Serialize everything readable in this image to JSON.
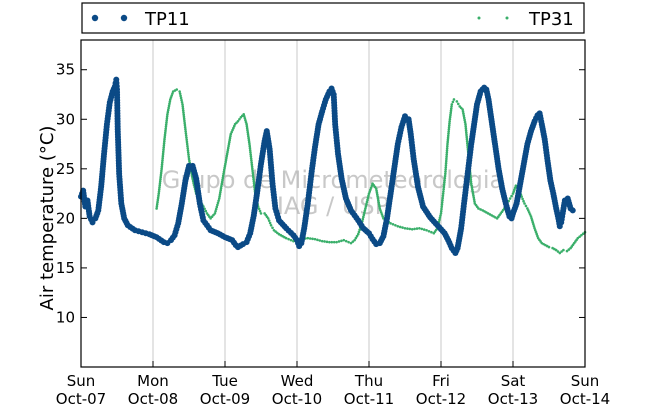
{
  "chart_data": {
    "type": "scatter",
    "ylabel": "Air temperature (°C)",
    "xlabel": "",
    "ylim": [
      5,
      38
    ],
    "y_ticks": [
      10,
      15,
      20,
      25,
      30,
      35
    ],
    "x_range_days": [
      0,
      7
    ],
    "grid": "vertical lines at day boundaries",
    "legend_position": "top (above plot), spanning full width",
    "x_ticks": [
      {
        "day": 0,
        "line1": "Sun",
        "line2": "Oct-07"
      },
      {
        "day": 1,
        "line1": "Mon",
        "line2": "Oct-08"
      },
      {
        "day": 2,
        "line1": "Tue",
        "line2": "Oct-09"
      },
      {
        "day": 3,
        "line1": "Wed",
        "line2": "Oct-10"
      },
      {
        "day": 4,
        "line1": "Thu",
        "line2": "Oct-11"
      },
      {
        "day": 5,
        "line1": "Fri",
        "line2": "Oct-12"
      },
      {
        "day": 6,
        "line1": "Sat",
        "line2": "Oct-13"
      },
      {
        "day": 7,
        "line1": "Sun",
        "line2": "Oct-14"
      }
    ],
    "watermark": [
      "Grupo de Micrometeorologia",
      "IAG / USP"
    ],
    "series": [
      {
        "name": "TP11",
        "color": "#0b4a86",
        "marker": "large-dot",
        "points": [
          [
            0.0,
            22.2
          ],
          [
            0.03,
            22.8
          ],
          [
            0.06,
            21.2
          ],
          [
            0.09,
            21.8
          ],
          [
            0.12,
            20.2
          ],
          [
            0.16,
            19.6
          ],
          [
            0.2,
            20.0
          ],
          [
            0.24,
            20.8
          ],
          [
            0.28,
            23.2
          ],
          [
            0.32,
            26.5
          ],
          [
            0.36,
            29.5
          ],
          [
            0.4,
            31.7
          ],
          [
            0.44,
            32.8
          ],
          [
            0.47,
            33.3
          ],
          [
            0.49,
            34.0
          ],
          [
            0.5,
            33.0
          ],
          [
            0.51,
            29.0
          ],
          [
            0.53,
            24.5
          ],
          [
            0.56,
            21.5
          ],
          [
            0.6,
            20.0
          ],
          [
            0.65,
            19.3
          ],
          [
            0.75,
            18.8
          ],
          [
            0.85,
            18.6
          ],
          [
            0.95,
            18.4
          ],
          [
            1.05,
            18.1
          ],
          [
            1.15,
            17.6
          ],
          [
            1.2,
            17.5
          ],
          [
            1.25,
            17.8
          ],
          [
            1.3,
            18.3
          ],
          [
            1.35,
            19.5
          ],
          [
            1.4,
            21.5
          ],
          [
            1.45,
            23.8
          ],
          [
            1.5,
            25.3
          ],
          [
            1.55,
            25.3
          ],
          [
            1.6,
            24.0
          ],
          [
            1.65,
            21.5
          ],
          [
            1.7,
            19.8
          ],
          [
            1.8,
            18.8
          ],
          [
            1.9,
            18.5
          ],
          [
            2.0,
            18.1
          ],
          [
            2.1,
            17.8
          ],
          [
            2.15,
            17.3
          ],
          [
            2.18,
            17.1
          ],
          [
            2.25,
            17.4
          ],
          [
            2.3,
            17.6
          ],
          [
            2.35,
            18.5
          ],
          [
            2.4,
            20.3
          ],
          [
            2.45,
            22.8
          ],
          [
            2.5,
            25.5
          ],
          [
            2.55,
            27.8
          ],
          [
            2.58,
            28.8
          ],
          [
            2.62,
            27.0
          ],
          [
            2.66,
            23.5
          ],
          [
            2.7,
            21.0
          ],
          [
            2.75,
            19.8
          ],
          [
            2.85,
            19.0
          ],
          [
            2.95,
            18.3
          ],
          [
            3.0,
            17.8
          ],
          [
            3.03,
            17.2
          ],
          [
            3.06,
            17.5
          ],
          [
            3.1,
            19.0
          ],
          [
            3.15,
            21.5
          ],
          [
            3.2,
            24.5
          ],
          [
            3.25,
            27.2
          ],
          [
            3.3,
            29.5
          ],
          [
            3.35,
            30.8
          ],
          [
            3.4,
            32.0
          ],
          [
            3.45,
            32.8
          ],
          [
            3.48,
            33.1
          ],
          [
            3.51,
            32.5
          ],
          [
            3.53,
            29.5
          ],
          [
            3.57,
            26.5
          ],
          [
            3.62,
            24.0
          ],
          [
            3.68,
            22.0
          ],
          [
            3.75,
            20.8
          ],
          [
            3.85,
            19.8
          ],
          [
            3.92,
            19.0
          ],
          [
            4.0,
            18.5
          ],
          [
            4.05,
            17.9
          ],
          [
            4.1,
            17.4
          ],
          [
            4.15,
            17.5
          ],
          [
            4.2,
            18.2
          ],
          [
            4.25,
            20.0
          ],
          [
            4.3,
            22.5
          ],
          [
            4.35,
            25.0
          ],
          [
            4.4,
            27.5
          ],
          [
            4.45,
            29.2
          ],
          [
            4.5,
            30.3
          ],
          [
            4.55,
            30.0
          ],
          [
            4.58,
            28.5
          ],
          [
            4.62,
            26.0
          ],
          [
            4.68,
            23.2
          ],
          [
            4.75,
            21.2
          ],
          [
            4.85,
            20.1
          ],
          [
            4.95,
            19.3
          ],
          [
            5.05,
            18.5
          ],
          [
            5.1,
            17.8
          ],
          [
            5.15,
            17.0
          ],
          [
            5.2,
            16.5
          ],
          [
            5.23,
            17.0
          ],
          [
            5.28,
            19.0
          ],
          [
            5.32,
            21.5
          ],
          [
            5.37,
            24.5
          ],
          [
            5.42,
            27.5
          ],
          [
            5.46,
            29.5
          ],
          [
            5.5,
            31.5
          ],
          [
            5.55,
            32.8
          ],
          [
            5.6,
            33.2
          ],
          [
            5.63,
            33.0
          ],
          [
            5.66,
            32.0
          ],
          [
            5.7,
            30.0
          ],
          [
            5.75,
            27.5
          ],
          [
            5.8,
            25.0
          ],
          [
            5.85,
            23.0
          ],
          [
            5.9,
            21.5
          ],
          [
            5.95,
            20.2
          ],
          [
            5.98,
            20.0
          ],
          [
            6.0,
            20.5
          ],
          [
            6.05,
            21.5
          ],
          [
            6.1,
            23.5
          ],
          [
            6.15,
            25.5
          ],
          [
            6.2,
            27.5
          ],
          [
            6.25,
            28.8
          ],
          [
            6.3,
            29.8
          ],
          [
            6.34,
            30.4
          ],
          [
            6.37,
            30.6
          ],
          [
            6.4,
            29.5
          ],
          [
            6.44,
            28.0
          ],
          [
            6.48,
            25.8
          ],
          [
            6.52,
            23.8
          ],
          [
            6.56,
            22.5
          ],
          [
            6.6,
            21.0
          ],
          [
            6.63,
            20.0
          ],
          [
            6.65,
            19.2
          ],
          [
            6.67,
            19.6
          ],
          [
            6.69,
            20.5
          ],
          [
            6.72,
            21.8
          ],
          [
            6.76,
            22.0
          ],
          [
            6.8,
            21.0
          ],
          [
            6.83,
            20.8
          ]
        ]
      },
      {
        "name": "TP31",
        "color": "#3aaf6a",
        "marker": "small-dot",
        "points": [
          [
            1.05,
            21.0
          ],
          [
            1.08,
            22.5
          ],
          [
            1.12,
            25.0
          ],
          [
            1.16,
            28.0
          ],
          [
            1.2,
            30.5
          ],
          [
            1.24,
            32.0
          ],
          [
            1.28,
            32.8
          ],
          [
            1.33,
            33.0
          ],
          [
            1.37,
            32.8
          ],
          [
            1.41,
            31.5
          ],
          [
            1.45,
            29.0
          ],
          [
            1.5,
            26.0
          ],
          [
            1.55,
            24.0
          ],
          [
            1.6,
            22.5
          ],
          [
            1.65,
            21.8
          ],
          [
            1.7,
            21.2
          ],
          [
            1.75,
            20.5
          ],
          [
            1.8,
            20.0
          ],
          [
            1.86,
            20.5
          ],
          [
            1.92,
            22.0
          ],
          [
            1.98,
            24.5
          ],
          [
            2.03,
            26.5
          ],
          [
            2.08,
            28.5
          ],
          [
            2.14,
            29.5
          ],
          [
            2.18,
            29.8
          ],
          [
            2.22,
            30.2
          ],
          [
            2.26,
            30.5
          ],
          [
            2.3,
            29.5
          ],
          [
            2.34,
            27.5
          ],
          [
            2.38,
            25.0
          ],
          [
            2.42,
            22.5
          ],
          [
            2.46,
            21.2
          ],
          [
            2.5,
            20.5
          ],
          [
            2.55,
            20.5
          ],
          [
            2.6,
            20.0
          ],
          [
            2.64,
            19.3
          ],
          [
            2.68,
            18.8
          ],
          [
            2.75,
            18.4
          ],
          [
            2.85,
            18.0
          ],
          [
            2.95,
            17.7
          ],
          [
            3.05,
            17.9
          ],
          [
            3.15,
            18.0
          ],
          [
            3.25,
            17.9
          ],
          [
            3.35,
            17.7
          ],
          [
            3.45,
            17.6
          ],
          [
            3.55,
            17.6
          ],
          [
            3.65,
            17.8
          ],
          [
            3.75,
            17.5
          ],
          [
            3.8,
            17.8
          ],
          [
            3.85,
            18.4
          ],
          [
            3.9,
            19.5
          ],
          [
            3.95,
            21.0
          ],
          [
            4.0,
            22.5
          ],
          [
            4.05,
            23.5
          ],
          [
            4.1,
            23.0
          ],
          [
            4.15,
            21.0
          ],
          [
            4.2,
            20.0
          ],
          [
            4.3,
            19.5
          ],
          [
            4.4,
            19.2
          ],
          [
            4.5,
            19.0
          ],
          [
            4.6,
            18.9
          ],
          [
            4.7,
            19.0
          ],
          [
            4.8,
            18.8
          ],
          [
            4.9,
            18.5
          ],
          [
            4.95,
            19.0
          ],
          [
            5.0,
            20.5
          ],
          [
            5.03,
            22.5
          ],
          [
            5.06,
            24.5
          ],
          [
            5.09,
            27.5
          ],
          [
            5.12,
            29.8
          ],
          [
            5.15,
            31.5
          ],
          [
            5.18,
            32.0
          ],
          [
            5.22,
            31.8
          ],
          [
            5.26,
            31.3
          ],
          [
            5.3,
            31.0
          ],
          [
            5.34,
            29.5
          ],
          [
            5.38,
            26.5
          ],
          [
            5.42,
            23.5
          ],
          [
            5.47,
            21.5
          ],
          [
            5.52,
            21.0
          ],
          [
            5.58,
            20.8
          ],
          [
            5.63,
            20.6
          ],
          [
            5.68,
            20.4
          ],
          [
            5.73,
            20.2
          ],
          [
            5.78,
            20.0
          ],
          [
            5.83,
            20.5
          ],
          [
            5.88,
            21.0
          ],
          [
            5.92,
            21.5
          ],
          [
            5.96,
            22.0
          ],
          [
            6.0,
            22.5
          ],
          [
            6.04,
            23.3
          ],
          [
            6.08,
            23.0
          ],
          [
            6.12,
            22.2
          ],
          [
            6.16,
            21.5
          ],
          [
            6.2,
            21.0
          ],
          [
            6.25,
            20.2
          ],
          [
            6.3,
            19.0
          ],
          [
            6.35,
            18.0
          ],
          [
            6.4,
            17.5
          ],
          [
            6.45,
            17.3
          ],
          [
            6.5,
            17.1
          ],
          [
            6.55,
            17.0
          ],
          [
            6.6,
            16.8
          ],
          [
            6.65,
            16.5
          ],
          [
            6.7,
            16.8
          ],
          [
            6.75,
            16.7
          ],
          [
            6.8,
            17.0
          ],
          [
            6.85,
            17.5
          ],
          [
            6.9,
            18.0
          ],
          [
            6.95,
            18.3
          ],
          [
            7.0,
            18.6
          ]
        ]
      }
    ]
  }
}
